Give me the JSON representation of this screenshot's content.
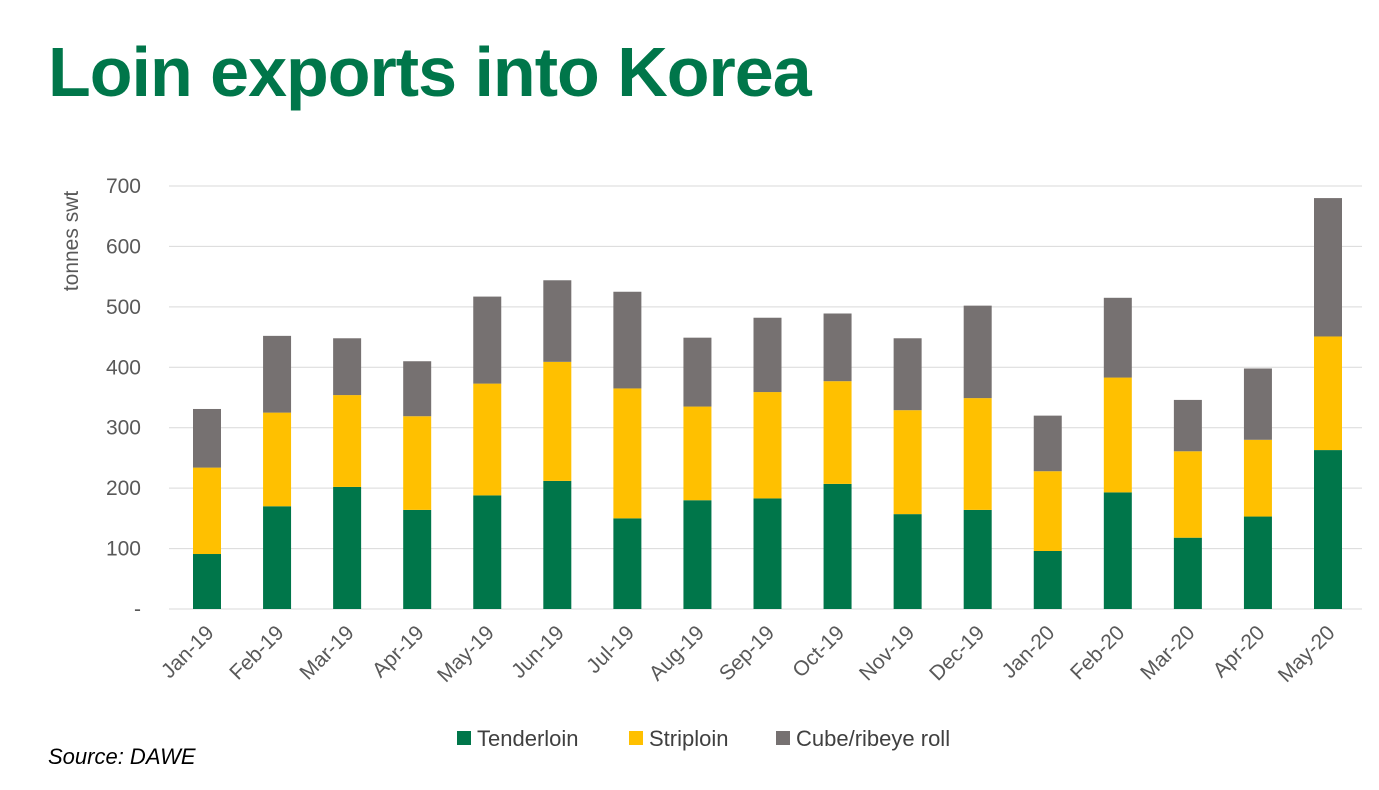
{
  "page": {
    "title": "Loin exports into Korea",
    "source": "Source: DAWE"
  },
  "colors": {
    "title": "#00764a",
    "gridline": "#d9d9d9",
    "axis_text": "#595959"
  },
  "chart_data": {
    "type": "bar",
    "stacked": true,
    "title": "",
    "xlabel": "",
    "ylabel": "tonnes swt",
    "ylim": [
      0,
      700
    ],
    "yticks": [
      0,
      100,
      200,
      300,
      400,
      500,
      600,
      700
    ],
    "ytick_labels": [
      "-",
      "100",
      "200",
      "300",
      "400",
      "500",
      "600",
      "700"
    ],
    "grid": true,
    "legend_position": "bottom",
    "categories": [
      "Jan-19",
      "Feb-19",
      "Mar-19",
      "Apr-19",
      "May-19",
      "Jun-19",
      "Jul-19",
      "Aug-19",
      "Sep-19",
      "Oct-19",
      "Nov-19",
      "Dec-19",
      "Jan-20",
      "Feb-20",
      "Mar-20",
      "Apr-20",
      "May-20"
    ],
    "series": [
      {
        "name": "Tenderloin",
        "color": "#00764a",
        "values": [
          91,
          170,
          202,
          164,
          188,
          212,
          150,
          180,
          183,
          207,
          157,
          164,
          96,
          193,
          118,
          153,
          263
        ]
      },
      {
        "name": "Striploin",
        "color": "#ffc000",
        "values": [
          143,
          155,
          152,
          155,
          185,
          197,
          215,
          155,
          176,
          170,
          172,
          185,
          132,
          190,
          143,
          127,
          188
        ]
      },
      {
        "name": "Cube/ribeye roll",
        "color": "#767171",
        "values": [
          97,
          127,
          94,
          91,
          144,
          135,
          160,
          114,
          123,
          112,
          119,
          153,
          92,
          132,
          85,
          118,
          229
        ]
      }
    ]
  }
}
